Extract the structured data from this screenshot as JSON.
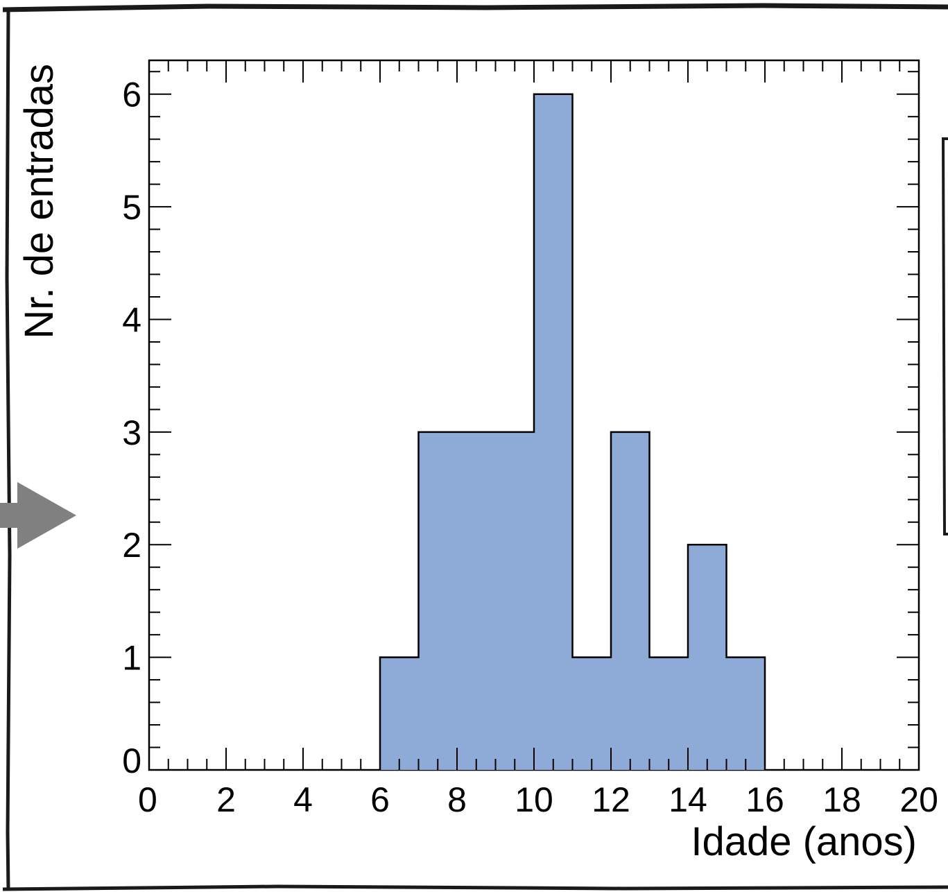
{
  "chart_data": {
    "type": "bar",
    "histogram": true,
    "xlabel": "Idade (anos)",
    "ylabel": "Nr. de entradas",
    "xlim": [
      0,
      20
    ],
    "ylim": [
      0,
      6.3
    ],
    "x_ticks": [
      "0",
      "2",
      "4",
      "6",
      "8",
      "10",
      "12",
      "14",
      "16",
      "18",
      "20"
    ],
    "y_ticks": [
      "0",
      "1",
      "2",
      "3",
      "4",
      "5",
      "6"
    ],
    "bin_width": 1,
    "bins": [
      {
        "low": 0,
        "high": 1,
        "count": 0
      },
      {
        "low": 1,
        "high": 2,
        "count": 0
      },
      {
        "low": 2,
        "high": 3,
        "count": 0
      },
      {
        "low": 3,
        "high": 4,
        "count": 0
      },
      {
        "low": 4,
        "high": 5,
        "count": 0
      },
      {
        "low": 5,
        "high": 6,
        "count": 0
      },
      {
        "low": 6,
        "high": 7,
        "count": 1
      },
      {
        "low": 7,
        "high": 8,
        "count": 3
      },
      {
        "low": 8,
        "high": 9,
        "count": 3
      },
      {
        "low": 9,
        "high": 10,
        "count": 3
      },
      {
        "low": 10,
        "high": 11,
        "count": 6
      },
      {
        "low": 11,
        "high": 12,
        "count": 1
      },
      {
        "low": 12,
        "high": 13,
        "count": 3
      },
      {
        "low": 13,
        "high": 14,
        "count": 1
      },
      {
        "low": 14,
        "high": 15,
        "count": 2
      },
      {
        "low": 15,
        "high": 16,
        "count": 1
      },
      {
        "low": 16,
        "high": 17,
        "count": 0
      },
      {
        "low": 17,
        "high": 18,
        "count": 0
      },
      {
        "low": 18,
        "high": 19,
        "count": 0
      },
      {
        "low": 19,
        "high": 20,
        "count": 0
      }
    ],
    "fill_color": "#8eabd8",
    "edge_color": "#000000",
    "grid": false,
    "legend": "none"
  },
  "decorations": {
    "arrow_color": "#808080"
  }
}
